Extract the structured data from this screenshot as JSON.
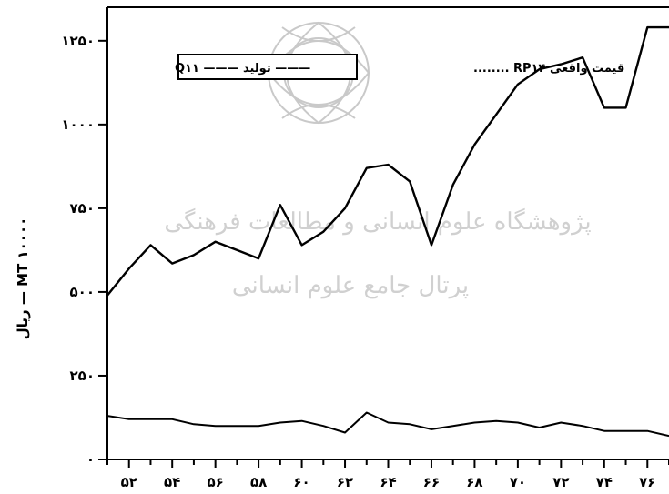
{
  "chart_data": {
    "type": "line",
    "ylabel": "ریال — MT ۱۰۰۰۰",
    "ylim": [
      0,
      1350
    ],
    "yticks": [
      {
        "value": 0,
        "label": "۰"
      },
      {
        "value": 250,
        "label": "۲۵۰"
      },
      {
        "value": 500,
        "label": "۵۰۰"
      },
      {
        "value": 750,
        "label": "۷۵۰"
      },
      {
        "value": 1000,
        "label": "۱۰۰۰"
      },
      {
        "value": 1250,
        "label": "۱۲۵۰"
      }
    ],
    "xlim": [
      51,
      77
    ],
    "xticks": [
      {
        "value": 52,
        "label": "۵۲"
      },
      {
        "value": 54,
        "label": "۵۴"
      },
      {
        "value": 56,
        "label": "۵۶"
      },
      {
        "value": 58,
        "label": "۵۸"
      },
      {
        "value": 60,
        "label": "۶۰"
      },
      {
        "value": 62,
        "label": "۶۲"
      },
      {
        "value": 64,
        "label": "۶۴"
      },
      {
        "value": 66,
        "label": "۶۶"
      },
      {
        "value": 68,
        "label": "۶۸"
      },
      {
        "value": 70,
        "label": "۷۰"
      },
      {
        "value": 72,
        "label": "۷۲"
      },
      {
        "value": 74,
        "label": "۷۴"
      },
      {
        "value": 76,
        "label": "۷۶"
      }
    ],
    "legend": {
      "text_series_2": "قیمت واقعی RP۱۴ ........",
      "text_series_1": "Q۱۱ ——— تولید ———",
      "placement": "top"
    },
    "series": [
      {
        "name": "Q۱۱",
        "x": [
          51,
          52,
          53,
          54,
          55,
          56,
          57,
          58,
          59,
          60,
          61,
          62,
          63,
          64,
          65,
          66,
          67,
          68,
          69,
          70,
          71,
          72,
          73,
          74,
          75,
          76,
          77
        ],
        "y": [
          130,
          120,
          120,
          120,
          105,
          100,
          100,
          100,
          110,
          115,
          100,
          80,
          140,
          110,
          105,
          90,
          100,
          110,
          115,
          110,
          95,
          110,
          100,
          85,
          85,
          85,
          70
        ]
      },
      {
        "name": "RP۱۴",
        "x": [
          51,
          52,
          53,
          54,
          55,
          56,
          57,
          58,
          59,
          60,
          61,
          62,
          63,
          64,
          65,
          66,
          67,
          68,
          69,
          70,
          71,
          72,
          73,
          74,
          75,
          76,
          77
        ],
        "y": [
          490,
          570,
          640,
          585,
          610,
          650,
          625,
          600,
          760,
          640,
          680,
          750,
          870,
          880,
          830,
          640,
          820,
          940,
          1030,
          1120,
          1165,
          1180,
          1200,
          1050,
          1050,
          1290,
          1290
        ]
      }
    ]
  },
  "watermark": {
    "line1": "پژوهشگاه علوم انسانی و مطالعات فرهنگی",
    "line2": "پرتال جامع علوم انسانی"
  }
}
